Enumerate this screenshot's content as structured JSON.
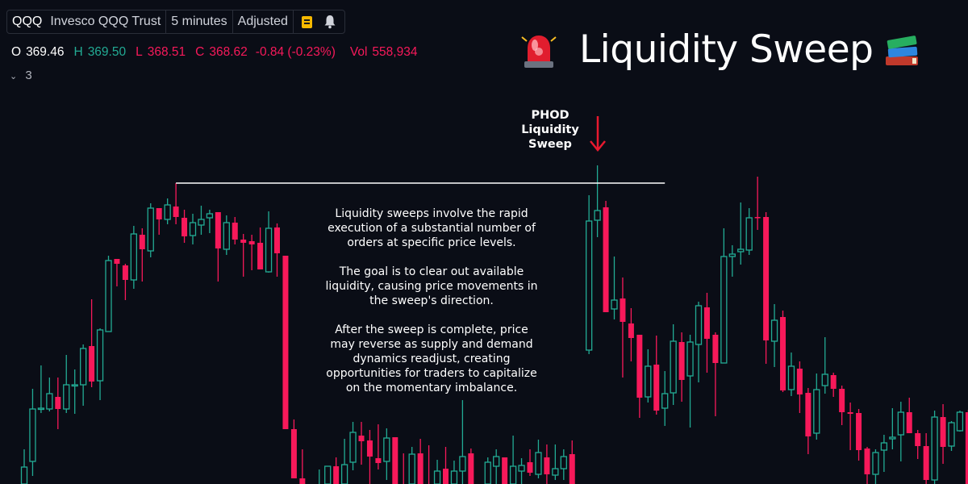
{
  "toolbar": {
    "symbol": "QQQ",
    "name": "Invesco QQQ Trust",
    "interval": "5 minutes",
    "adjustment": "Adjusted",
    "note_icon": "note-icon",
    "alert_icon": "bell-icon"
  },
  "ohlc": {
    "o_label": "O",
    "o": "369.46",
    "h_label": "H",
    "h": "369.50",
    "l_label": "L",
    "l": "368.51",
    "c_label": "C",
    "c": "368.62",
    "change": "-0.84 (-0.23%)",
    "vol_label": "Vol",
    "vol": "558,934"
  },
  "indicators_toggle": {
    "chevron": "chevron-down-icon",
    "count": "3"
  },
  "headline": {
    "text": "Liquidity Sweep",
    "left_icon": "siren-icon",
    "right_icon": "books-icon"
  },
  "annotation": {
    "label_lines": [
      "PHOD",
      "Liquidity",
      "Sweep"
    ],
    "arrow_icon": "arrow-down-icon",
    "paragraphs": [
      [
        "Liquidity sweeps involve the rapid",
        "execution of a substantial number of",
        "orders at specific price levels."
      ],
      [
        "The goal is to clear out available",
        "liquidity, causing price movements in",
        "the sweep's direction."
      ],
      [
        "After the sweep is complete, price",
        "may reverse as supply and demand",
        "dynamics readjust, creating",
        "opportunities for traders to capitalize",
        "on the momentary imbalance."
      ]
    ]
  },
  "colors": {
    "background": "#0a0d16",
    "up": "#22ab94",
    "down": "#f7195a",
    "level_line": "#ffffff",
    "arrow": "#e8192f"
  },
  "chart_data": {
    "type": "candlestick",
    "symbol": "QQQ",
    "interval": "5 minutes",
    "ylim": [
      368.0,
      371.0
    ],
    "grid": false,
    "fields": [
      "open",
      "high",
      "low",
      "close"
    ],
    "candles": [
      [
        367.95,
        368.215,
        367.9,
        368.105
      ],
      [
        368.14,
        368.59,
        368.05,
        368.465
      ],
      [
        368.465,
        368.735,
        368.44,
        368.47
      ],
      [
        368.465,
        368.66,
        368.45,
        368.56
      ],
      [
        368.54,
        368.66,
        368.34,
        368.465
      ],
      [
        368.465,
        368.8,
        368.44,
        368.615
      ],
      [
        368.61,
        368.71,
        368.435,
        368.615
      ],
      [
        368.615,
        368.865,
        368.485,
        368.84
      ],
      [
        368.855,
        369.145,
        368.6,
        368.635
      ],
      [
        368.64,
        368.965,
        368.52,
        368.955
      ],
      [
        368.945,
        369.415,
        368.945,
        369.385
      ],
      [
        369.395,
        369.395,
        369.225,
        369.365
      ],
      [
        369.355,
        369.365,
        369.14,
        369.265
      ],
      [
        369.265,
        369.6,
        369.21,
        369.55
      ],
      [
        369.545,
        369.585,
        369.255,
        369.455
      ],
      [
        369.445,
        369.74,
        369.405,
        369.71
      ],
      [
        369.71,
        369.71,
        369.545,
        369.64
      ],
      [
        369.64,
        369.77,
        369.61,
        369.73
      ],
      [
        369.72,
        369.865,
        369.61,
        369.655
      ],
      [
        369.65,
        369.7,
        369.495,
        369.535
      ],
      [
        369.54,
        369.675,
        369.485,
        369.62
      ],
      [
        369.605,
        369.725,
        369.545,
        369.64
      ],
      [
        369.65,
        369.7,
        369.555,
        369.675
      ],
      [
        369.685,
        369.685,
        369.255,
        369.46
      ],
      [
        369.455,
        369.665,
        369.42,
        369.62
      ],
      [
        369.62,
        369.655,
        369.485,
        369.515
      ],
      [
        369.515,
        369.55,
        369.285,
        369.495
      ],
      [
        369.505,
        369.545,
        369.325,
        369.485
      ],
      [
        369.495,
        369.59,
        369.33,
        369.33
      ],
      [
        369.315,
        369.69,
        369.31,
        369.585
      ],
      [
        369.59,
        369.615,
        369.285,
        369.43
      ],
      [
        369.415,
        369.415,
        368.34,
        368.34
      ],
      [
        368.34,
        368.4,
        368.035,
        368.035
      ],
      [
        368.035,
        368.215,
        367.9,
        367.95
      ],
      [
        367.95,
        367.98,
        367.8,
        367.85
      ],
      [
        367.85,
        368.09,
        367.8,
        367.985
      ],
      [
        367.95,
        368.11,
        367.9,
        368.11
      ],
      [
        368.11,
        368.165,
        367.9,
        367.95
      ],
      [
        367.95,
        368.28,
        367.9,
        368.12
      ],
      [
        368.135,
        368.385,
        368.085,
        368.32
      ],
      [
        368.3,
        368.385,
        368.12,
        368.265
      ],
      [
        368.27,
        368.335,
        367.95,
        368.17
      ],
      [
        368.16,
        368.37,
        368.09,
        368.13
      ],
      [
        368.14,
        368.345,
        368.025,
        368.285
      ],
      [
        368.29,
        368.29,
        367.9,
        367.95
      ],
      [
        367.98,
        368.19,
        367.85,
        367.9
      ],
      [
        367.95,
        368.23,
        367.9,
        368.185
      ],
      [
        368.19,
        368.28,
        367.9,
        367.95
      ],
      [
        367.98,
        368.24,
        367.85,
        367.9
      ],
      [
        367.95,
        368.15,
        367.9,
        368.08
      ],
      [
        368.095,
        368.23,
        367.9,
        367.95
      ],
      [
        367.95,
        368.145,
        367.9,
        368.08
      ],
      [
        368.08,
        368.52,
        367.95,
        368.17
      ],
      [
        368.19,
        368.22,
        367.9,
        367.95
      ],
      [
        367.95,
        367.98,
        367.8,
        367.85
      ],
      [
        367.95,
        368.165,
        367.9,
        368.135
      ],
      [
        368.11,
        368.215,
        367.95,
        368.17
      ],
      [
        368.165,
        368.165,
        367.9,
        367.95
      ],
      [
        367.95,
        368.3,
        367.9,
        368.11
      ],
      [
        368.08,
        368.16,
        367.95,
        368.115
      ],
      [
        368.135,
        368.215,
        368.05,
        368.07
      ],
      [
        368.06,
        368.275,
        368.035,
        368.195
      ],
      [
        368.165,
        368.245,
        367.95,
        368.06
      ],
      [
        368.055,
        368.245,
        368.025,
        368.095
      ],
      [
        368.095,
        368.215,
        368.025,
        368.17
      ],
      [
        368.185,
        368.27,
        367.9,
        367.95
      ],
      [
        367.95,
        367.98,
        367.8,
        367.85
      ],
      [
        368.83,
        369.79,
        368.805,
        369.63
      ],
      [
        369.635,
        369.975,
        369.53,
        369.695
      ],
      [
        369.715,
        369.755,
        369.065,
        369.065
      ],
      [
        369.085,
        369.41,
        369.02,
        369.14
      ],
      [
        369.15,
        369.28,
        368.66,
        369.005
      ],
      [
        368.995,
        369.09,
        368.76,
        368.905
      ],
      [
        368.925,
        368.925,
        368.41,
        368.535
      ],
      [
        368.54,
        368.835,
        368.505,
        368.73
      ],
      [
        368.74,
        368.92,
        368.43,
        368.455
      ],
      [
        368.47,
        368.7,
        368.36,
        368.56
      ],
      [
        368.565,
        368.99,
        368.49,
        368.885
      ],
      [
        368.88,
        368.94,
        368.51,
        368.645
      ],
      [
        368.67,
        368.925,
        368.35,
        368.88
      ],
      [
        368.865,
        369.13,
        368.63,
        369.105
      ],
      [
        369.095,
        369.185,
        368.69,
        368.9
      ],
      [
        368.925,
        368.94,
        368.42,
        368.75
      ],
      [
        368.75,
        369.585,
        368.75,
        369.41
      ],
      [
        369.41,
        369.48,
        369.285,
        369.425
      ],
      [
        369.44,
        369.745,
        369.36,
        369.455
      ],
      [
        369.45,
        369.71,
        369.42,
        369.65
      ],
      [
        369.655,
        369.905,
        369.575,
        369.65
      ],
      [
        369.655,
        369.685,
        368.745,
        368.89
      ],
      [
        368.885,
        369.115,
        368.725,
        369.015
      ],
      [
        369.035,
        369.075,
        368.57,
        368.58
      ],
      [
        368.585,
        368.815,
        368.545,
        368.73
      ],
      [
        368.715,
        368.76,
        368.44,
        368.555
      ],
      [
        368.565,
        368.595,
        368.185,
        368.295
      ],
      [
        368.315,
        368.685,
        368.275,
        368.585
      ],
      [
        368.61,
        368.91,
        368.56,
        368.68
      ],
      [
        368.675,
        368.69,
        368.54,
        368.59
      ],
      [
        368.59,
        368.61,
        368.365,
        368.445
      ],
      [
        368.445,
        368.505,
        368.21,
        368.435
      ],
      [
        368.44,
        368.465,
        368.145,
        368.21
      ],
      [
        368.22,
        368.23,
        367.95,
        368.06
      ],
      [
        368.06,
        368.215,
        367.95,
        368.195
      ],
      [
        368.21,
        368.305,
        368.075,
        368.255
      ],
      [
        368.28,
        368.47,
        368.215,
        368.29
      ],
      [
        368.305,
        368.51,
        368.14,
        368.445
      ],
      [
        368.445,
        368.535,
        368.315,
        368.315
      ],
      [
        368.315,
        368.335,
        368.155,
        368.235
      ],
      [
        368.235,
        368.315,
        367.95,
        368.025
      ],
      [
        368.025,
        368.455,
        367.95,
        368.415
      ],
      [
        368.415,
        368.495,
        368.125,
        368.23
      ],
      [
        368.235,
        368.39,
        368.205,
        368.38
      ],
      [
        368.33,
        368.455,
        368.325,
        368.445
      ],
      [
        368.445,
        368.46,
        367.9,
        367.95
      ]
    ],
    "level_line": {
      "price": 369.865,
      "from_candle": 18,
      "to_candle": 76
    },
    "sweep_candle": 68
  }
}
